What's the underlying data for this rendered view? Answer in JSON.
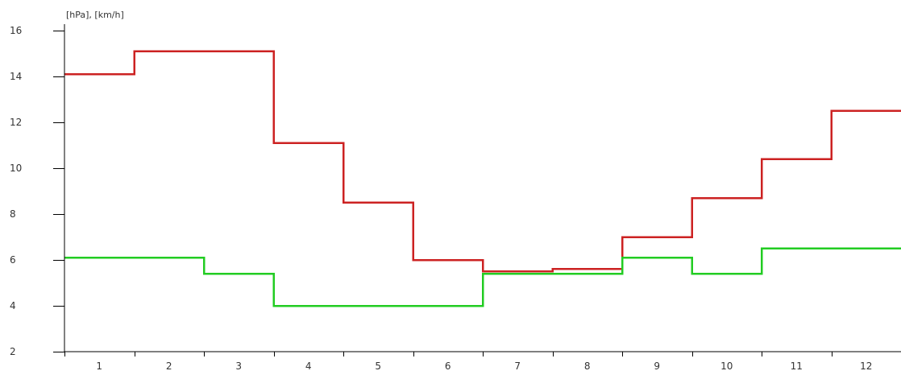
{
  "chart_data": {
    "type": "line",
    "step": true,
    "ylabel": "[hPa], [km/h]",
    "ylim": [
      2,
      16
    ],
    "yticks": [
      "2",
      "4",
      "6",
      "8",
      "10",
      "12",
      "14",
      "16"
    ],
    "categories": [
      "1",
      "2",
      "3",
      "4",
      "5",
      "6",
      "7",
      "8",
      "9",
      "10",
      "11",
      "12"
    ],
    "grid": false,
    "series": [
      {
        "color": "#cc2222",
        "values": [
          14.1,
          15.1,
          15.1,
          11.1,
          8.5,
          6.0,
          5.5,
          5.6,
          7.0,
          8.7,
          10.4,
          12.5
        ]
      },
      {
        "color": "#22cc22",
        "values": [
          6.1,
          6.1,
          5.4,
          4.0,
          4.0,
          4.0,
          5.4,
          5.4,
          6.1,
          5.4,
          6.5,
          6.5
        ]
      }
    ]
  }
}
